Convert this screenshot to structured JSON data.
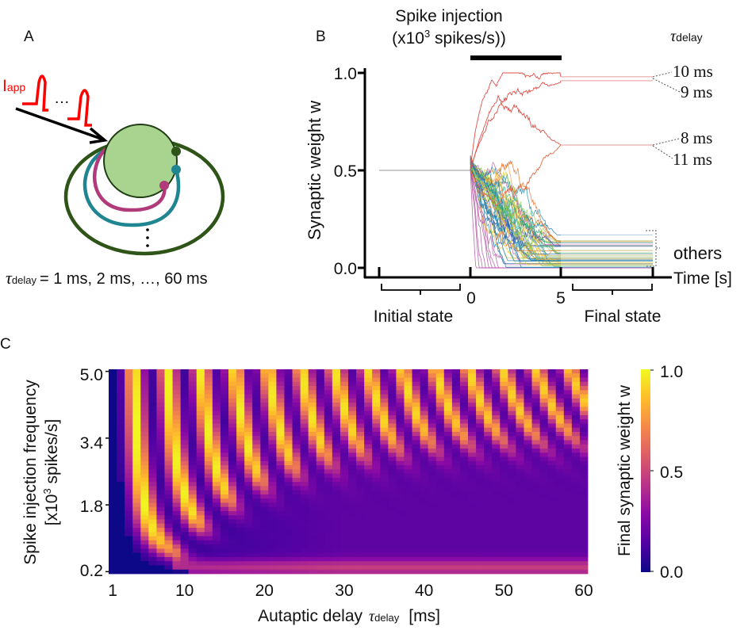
{
  "panel_a": {
    "label": "A",
    "iapp_main": "I",
    "iapp_sub": "app",
    "pulse_dots": "…",
    "tau_symbol": "τ",
    "tau_sub": "delay",
    "tau_values": "= 1 ms, 2 ms, …, 60 ms",
    "colors": {
      "soma": "#a8d490",
      "outer_loop": "#2e5418",
      "teal_loop": "#1e8591",
      "magenta_loop": "#b03a7a",
      "pulse": "#ff0000"
    }
  },
  "chart_data": [
    {
      "type": "line",
      "panel": "B",
      "title": "Spike injection",
      "subtitle_pre": "(x10",
      "subtitle_sup": "3",
      "subtitle_post": " spikes/s))",
      "xlabel": "Time [s]",
      "ylabel": "Synaptic weight w",
      "ylim": [
        0,
        1
      ],
      "yticks": [
        "1.0",
        "0.5",
        "0.0"
      ],
      "xticks": [
        "0",
        "5"
      ],
      "injection_interval": [
        0,
        5
      ],
      "initial_weight": 0.5,
      "region_labels": {
        "initial": "Initial state",
        "final": "Final state"
      },
      "legend_title_symbol": "τ",
      "legend_title_sub": "delay",
      "labeled_series": [
        {
          "name": "10 ms",
          "final_w": 0.98,
          "color": "#e0504a"
        },
        {
          "name": "9 ms",
          "final_w": 0.96,
          "color": "#e0504a"
        },
        {
          "name": "8 ms",
          "final_w": 0.63,
          "color": "#e0504a"
        },
        {
          "name": "11 ms",
          "final_w": 0.63,
          "color": "#e86a40"
        }
      ],
      "others_label": "others",
      "others_count": 56,
      "others_final_range": [
        0,
        0.18
      ]
    },
    {
      "type": "heatmap",
      "panel": "C",
      "xlabel_pre": "Autaptic delay",
      "xlabel_symbol": "τ",
      "xlabel_sub": "delay",
      "xlabel_post": "[ms]",
      "ylabel_line1": "Spike injection frequency",
      "ylabel_line2_pre": "[x10",
      "ylabel_line2_sup": "3",
      "ylabel_line2_post": " spikes/s]",
      "x_range": [
        1,
        60
      ],
      "x_step": 1,
      "y_range": [
        0.2,
        5.0
      ],
      "y_step": 0.1,
      "xticks": [
        "1",
        "10",
        "20",
        "30",
        "40",
        "50",
        "60"
      ],
      "yticks": [
        "5.0",
        "3.4",
        "1.8",
        "0.2"
      ],
      "colorbar_label": "Final synaptic weight w",
      "colorbar_ticks": [
        "1.0",
        "0.5",
        "0.0"
      ],
      "colormap": [
        "#0d0887",
        "#5302a3",
        "#8b0aa5",
        "#b83289",
        "#db5c68",
        "#f48849",
        "#febc2a",
        "#f0f921"
      ],
      "value_range": [
        0,
        1
      ],
      "model": {
        "stripe_period_ms": {
          "a": 3.47,
          "b_over_f": 3.65
        },
        "stripe_offset_ms": 0.5,
        "stripe_width_frac": 0.19,
        "threshold_freq": {
          "base": 0.5,
          "span": 2.8,
          "start_ms": 9,
          "scale_ms": 12
        },
        "background": {
          "min": 0.05,
          "max_extra": 0.12,
          "low_freq_band": 0.3
        }
      }
    }
  ]
}
